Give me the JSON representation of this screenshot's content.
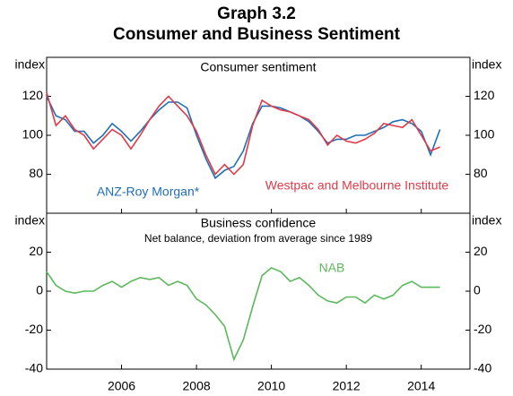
{
  "title": "Graph 3.2",
  "subtitle": "Consumer and Business Sentiment",
  "chart_data": [
    {
      "type": "line",
      "title": "Consumer sentiment",
      "ylabel": "index",
      "x": [
        2004.0,
        2004.25,
        2004.5,
        2004.75,
        2005.0,
        2005.25,
        2005.5,
        2005.75,
        2006.0,
        2006.25,
        2006.5,
        2006.75,
        2007.0,
        2007.25,
        2007.5,
        2007.75,
        2008.0,
        2008.25,
        2008.5,
        2008.75,
        2009.0,
        2009.25,
        2009.5,
        2009.75,
        2010.0,
        2010.25,
        2010.5,
        2010.75,
        2011.0,
        2011.25,
        2011.5,
        2011.75,
        2012.0,
        2012.25,
        2012.5,
        2012.75,
        2013.0,
        2013.25,
        2013.5,
        2013.75,
        2014.0,
        2014.25,
        2014.5
      ],
      "series": [
        {
          "name": "ANZ-Roy Morgan*",
          "color": "#1f6fb5",
          "values": [
            120,
            110,
            108,
            102,
            102,
            96,
            100,
            106,
            102,
            97,
            102,
            108,
            113,
            117,
            117,
            114,
            100,
            88,
            78,
            82,
            84,
            92,
            106,
            115,
            115,
            114,
            112,
            110,
            107,
            102,
            96,
            98,
            98,
            100,
            100,
            102,
            104,
            107,
            108,
            106,
            102,
            90,
            103
          ]
        },
        {
          "name": "Westpac and Melbourne Institute",
          "color": "#e03a48",
          "values": [
            122,
            105,
            110,
            103,
            100,
            93,
            98,
            103,
            100,
            93,
            100,
            108,
            115,
            120,
            115,
            110,
            102,
            90,
            80,
            85,
            80,
            85,
            105,
            118,
            115,
            113,
            112,
            110,
            108,
            103,
            95,
            100,
            97,
            96,
            98,
            101,
            106,
            105,
            104,
            108,
            100,
            92,
            94
          ]
        }
      ],
      "xlim": [
        2004.0,
        2015.3
      ],
      "ylim": [
        60,
        140
      ],
      "yticks": [
        80,
        100,
        120
      ]
    },
    {
      "type": "line",
      "title": "Business confidence",
      "subtitle": "Net balance, deviation from average since 1989",
      "ylabel": "index",
      "x": [
        2004.0,
        2004.25,
        2004.5,
        2004.75,
        2005.0,
        2005.25,
        2005.5,
        2005.75,
        2006.0,
        2006.25,
        2006.5,
        2006.75,
        2007.0,
        2007.25,
        2007.5,
        2007.75,
        2008.0,
        2008.25,
        2008.5,
        2008.75,
        2009.0,
        2009.25,
        2009.5,
        2009.75,
        2010.0,
        2010.25,
        2010.5,
        2010.75,
        2011.0,
        2011.25,
        2011.5,
        2011.75,
        2012.0,
        2012.25,
        2012.5,
        2012.75,
        2013.0,
        2013.25,
        2013.5,
        2013.75,
        2014.0,
        2014.25,
        2014.5
      ],
      "series": [
        {
          "name": "NAB",
          "color": "#5cb85c",
          "values": [
            10,
            3,
            0,
            -1,
            0,
            0,
            3,
            5,
            2,
            5,
            7,
            6,
            7,
            3,
            5,
            3,
            -4,
            -7,
            -12,
            -18,
            -35,
            -25,
            -8,
            8,
            12,
            10,
            5,
            7,
            3,
            -2,
            -5,
            -6,
            -3,
            -3,
            -6,
            -2,
            -4,
            -2,
            3,
            5,
            2,
            2,
            2
          ]
        }
      ],
      "xlim": [
        2004.0,
        2015.3
      ],
      "xticks": [
        2006,
        2008,
        2010,
        2012,
        2014
      ],
      "ylim": [
        -40,
        40
      ],
      "yticks": [
        -40,
        -20,
        0,
        20
      ]
    }
  ]
}
